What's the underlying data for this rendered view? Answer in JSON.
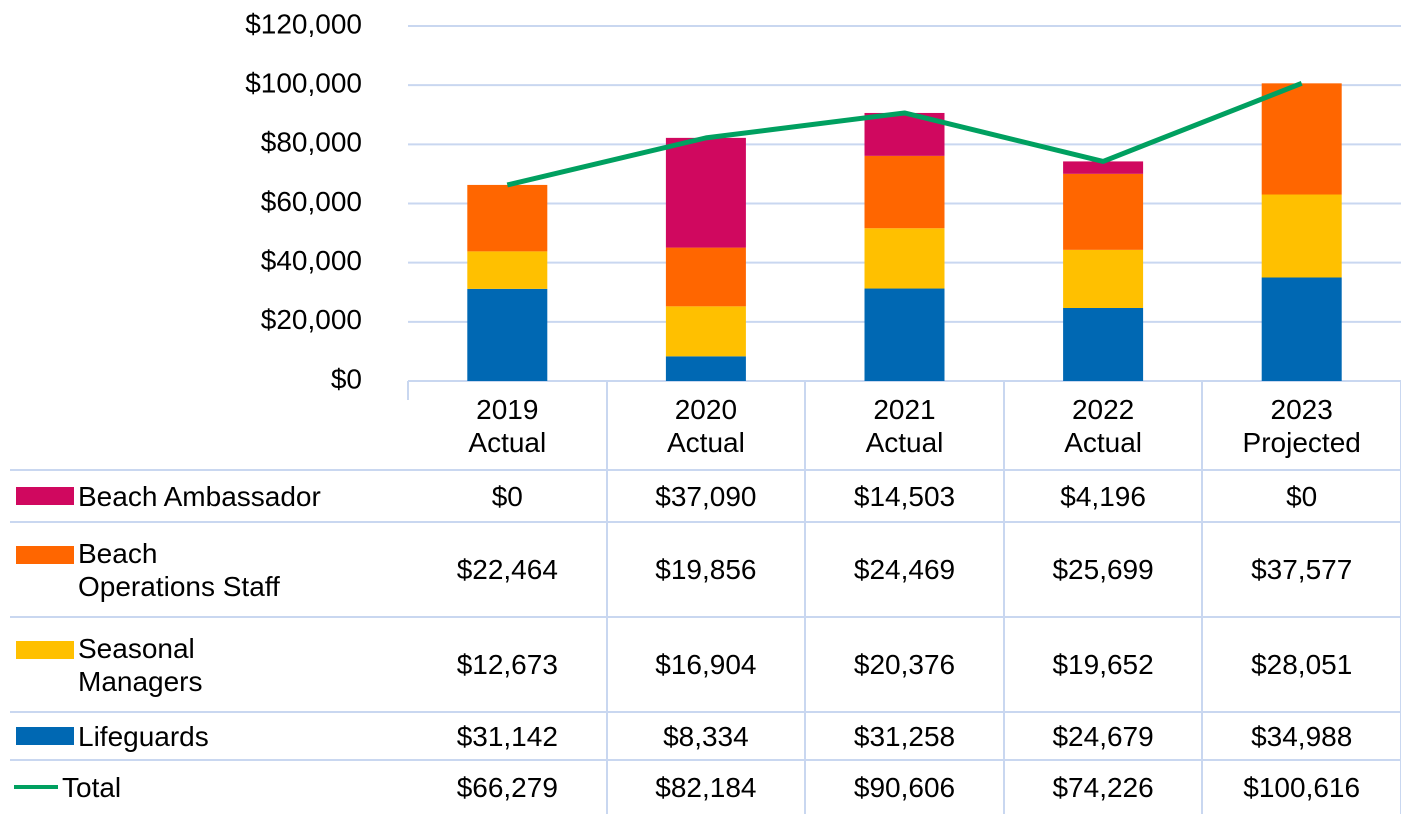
{
  "chart_data": {
    "type": "bar",
    "stacked": true,
    "categories": [
      "2019 Actual",
      "2020 Actual",
      "2021 Actual",
      "2022 Actual",
      "2023 Projected"
    ],
    "ylim": [
      0,
      120000
    ],
    "yticks": [
      {
        "value": 0,
        "label": "$0"
      },
      {
        "value": 20000,
        "label": "$20,000"
      },
      {
        "value": 40000,
        "label": "$40,000"
      },
      {
        "value": 60000,
        "label": "$60,000"
      },
      {
        "value": 80000,
        "label": "$80,000"
      },
      {
        "value": 100000,
        "label": "$100,000"
      },
      {
        "value": 120000,
        "label": "$120,000"
      }
    ],
    "grid": true,
    "series": [
      {
        "name": "Beach Ambassador",
        "color": "#d0085f",
        "values": [
          0,
          37090,
          14503,
          4196,
          0
        ],
        "value_labels": [
          "$0",
          "$37,090",
          "$14,503",
          "$4,196",
          "$0"
        ]
      },
      {
        "name": "Beach Operations Staff",
        "color": "#ff6600",
        "values": [
          22464,
          19856,
          24469,
          25699,
          37577
        ],
        "value_labels": [
          "$22,464",
          "$19,856",
          "$24,469",
          "$25,699",
          "$37,577"
        ]
      },
      {
        "name": "Seasonal Managers",
        "color": "#ffc000",
        "values": [
          12673,
          16904,
          20376,
          19652,
          28051
        ],
        "value_labels": [
          "$12,673",
          "$16,904",
          "$20,376",
          "$19,652",
          "$28,051"
        ]
      },
      {
        "name": "Lifeguards",
        "color": "#0068b3",
        "values": [
          31142,
          8334,
          31258,
          24679,
          34988
        ],
        "value_labels": [
          "$31,142",
          "$8,334",
          "$31,258",
          "$24,679",
          "$34,988"
        ]
      },
      {
        "name": "Total",
        "type": "line",
        "color": "#00a060",
        "values": [
          66279,
          82184,
          90606,
          74226,
          100616
        ],
        "value_labels": [
          "$66,279",
          "$82,184",
          "$90,606",
          "$74,226",
          "$100,616"
        ]
      }
    ]
  }
}
